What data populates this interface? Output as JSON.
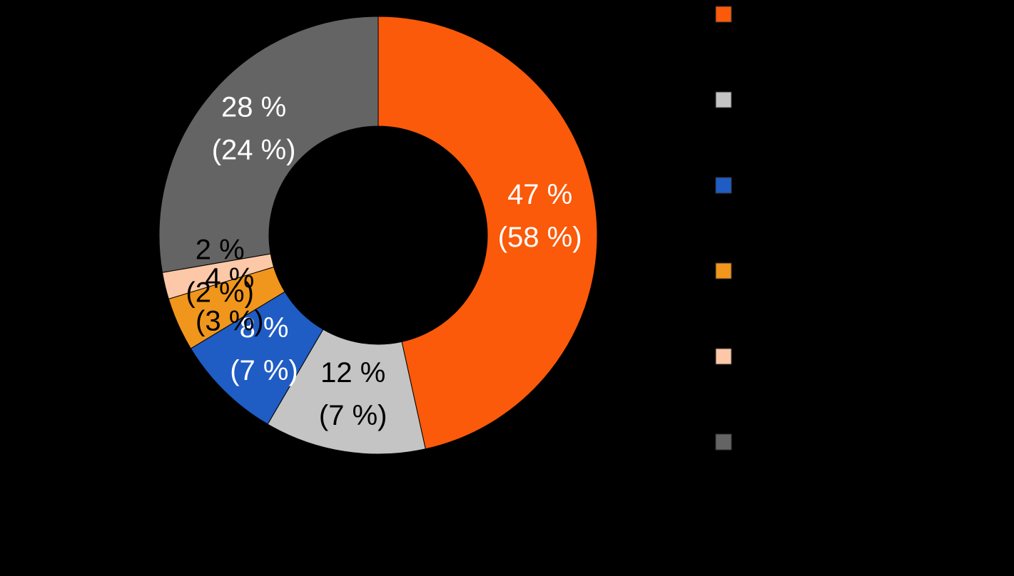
{
  "chart_data": {
    "type": "donut",
    "values": [
      47,
      12,
      8,
      4,
      2,
      28
    ],
    "value_labels": [
      "47 %",
      "12 %",
      "8 %",
      "4 %",
      "2 %",
      "28 %"
    ],
    "secondary_values": [
      58,
      7,
      7,
      3,
      2,
      24
    ],
    "secondary_value_labels": [
      "(58 %)",
      "(7 %)",
      "(7 %)",
      "(3 %)",
      "(2 %)",
      "(24 %)"
    ],
    "colors": [
      "#fa5a0a",
      "#c4c4c4",
      "#1f5cc4",
      "#f0961c",
      "#fcc8a8",
      "#646464"
    ],
    "label_colors": [
      "#ffffff",
      "#000000",
      "#ffffff",
      "#000000",
      "#000000",
      "#ffffff"
    ],
    "legend": "right"
  }
}
